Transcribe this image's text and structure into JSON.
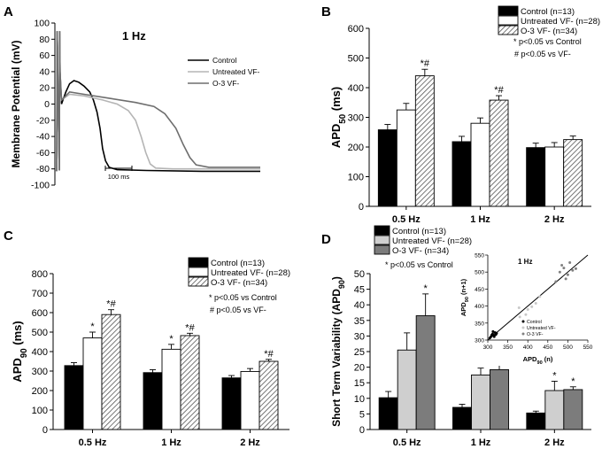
{
  "patterns": {
    "hatch_color": "#555555"
  },
  "panels": {
    "A": {
      "label": "A"
    },
    "B": {
      "label": "B"
    },
    "C": {
      "label": "C"
    },
    "D": {
      "label": "D"
    }
  },
  "chart_data": [
    {
      "id": "A",
      "type": "line",
      "title": "1 Hz",
      "ylabel": "Membrane Potential (mV)",
      "ylim": [
        -100,
        100
      ],
      "yticks": [
        -100,
        -80,
        -60,
        -40,
        -20,
        0,
        20,
        40,
        60,
        80,
        100
      ],
      "scale_bar": "100 ms",
      "xlim_ms": [
        0,
        700
      ],
      "series": [
        {
          "name": "Control",
          "color": "#000000",
          "points": [
            [
              0,
              -82
            ],
            [
              5,
              -82
            ],
            [
              6,
              90
            ],
            [
              7,
              70
            ],
            [
              8,
              30
            ],
            [
              12,
              -82
            ],
            [
              13,
              90
            ],
            [
              14,
              40
            ],
            [
              18,
              0
            ],
            [
              22,
              5
            ],
            [
              30,
              15
            ],
            [
              40,
              25
            ],
            [
              52,
              29
            ],
            [
              65,
              27
            ],
            [
              80,
              22
            ],
            [
              95,
              15
            ],
            [
              105,
              5
            ],
            [
              115,
              -10
            ],
            [
              123,
              -30
            ],
            [
              130,
              -55
            ],
            [
              138,
              -70
            ],
            [
              148,
              -78
            ],
            [
              170,
              -81
            ],
            [
              250,
              -82
            ],
            [
              400,
              -83
            ],
            [
              560,
              -83
            ]
          ]
        },
        {
          "name": "Untreated VF-",
          "color": "#b5b5b5",
          "points": [
            [
              0,
              -82
            ],
            [
              5,
              -82
            ],
            [
              6,
              90
            ],
            [
              7,
              70
            ],
            [
              8,
              30
            ],
            [
              12,
              -82
            ],
            [
              13,
              90
            ],
            [
              14,
              40
            ],
            [
              18,
              5
            ],
            [
              40,
              12
            ],
            [
              80,
              10
            ],
            [
              130,
              5
            ],
            [
              170,
              0
            ],
            [
              200,
              -8
            ],
            [
              220,
              -20
            ],
            [
              235,
              -40
            ],
            [
              248,
              -60
            ],
            [
              260,
              -74
            ],
            [
              275,
              -79
            ],
            [
              320,
              -80
            ],
            [
              560,
              -80
            ]
          ]
        },
        {
          "name": "O-3 VF-",
          "color": "#6e6e6e",
          "points": [
            [
              0,
              -82
            ],
            [
              5,
              -82
            ],
            [
              6,
              90
            ],
            [
              7,
              70
            ],
            [
              8,
              30
            ],
            [
              12,
              -82
            ],
            [
              13,
              90
            ],
            [
              14,
              40
            ],
            [
              18,
              5
            ],
            [
              40,
              15
            ],
            [
              80,
              12
            ],
            [
              150,
              7
            ],
            [
              220,
              2
            ],
            [
              270,
              -3
            ],
            [
              300,
              -12
            ],
            [
              330,
              -30
            ],
            [
              350,
              -50
            ],
            [
              368,
              -66
            ],
            [
              385,
              -75
            ],
            [
              420,
              -78
            ],
            [
              560,
              -78
            ]
          ]
        }
      ]
    },
    {
      "id": "B",
      "type": "bar",
      "ylabel": "APD50 (ms)",
      "ylim": [
        0,
        600
      ],
      "yticks": [
        0,
        100,
        200,
        300,
        400,
        500,
        600
      ],
      "categories": [
        "0.5 Hz",
        "1 Hz",
        "2 Hz"
      ],
      "series": [
        {
          "name": "Control (n=13)",
          "fill": "black",
          "values": [
            258,
            218,
            198
          ],
          "errors": [
            18,
            18,
            15
          ]
        },
        {
          "name": "Untreated VF- (n=28)",
          "fill": "white",
          "values": [
            325,
            280,
            200
          ],
          "errors": [
            22,
            18,
            15
          ]
        },
        {
          "name": "O-3 VF- (n=34)",
          "fill": "hatch",
          "values": [
            440,
            358,
            225
          ],
          "errors": [
            22,
            15,
            12
          ]
        }
      ],
      "annotations": [
        {
          "category": 0,
          "series": 2,
          "text": "*#"
        },
        {
          "category": 1,
          "series": 2,
          "text": "*#"
        }
      ],
      "notes": [
        "* p<0.05 vs Control",
        "# p<0.05 vs VF-"
      ]
    },
    {
      "id": "C",
      "type": "bar",
      "ylabel": "APD90 (ms)",
      "ylim": [
        0,
        800
      ],
      "yticks": [
        0,
        100,
        200,
        300,
        400,
        500,
        600,
        700,
        800
      ],
      "categories": [
        "0.5 Hz",
        "1 Hz",
        "2 Hz"
      ],
      "series": [
        {
          "name": "Control (n=13)",
          "fill": "black",
          "values": [
            328,
            292,
            265
          ],
          "errors": [
            15,
            15,
            12
          ]
        },
        {
          "name": "Untreated VF- (n=28)",
          "fill": "white",
          "values": [
            470,
            412,
            298
          ],
          "errors": [
            30,
            25,
            15
          ]
        },
        {
          "name": "O-3 VF- (n=34)",
          "fill": "hatch",
          "values": [
            590,
            482,
            350
          ],
          "errors": [
            25,
            12,
            10
          ]
        }
      ],
      "annotations": [
        {
          "category": 0,
          "series": 1,
          "text": "*"
        },
        {
          "category": 0,
          "series": 2,
          "text": "*#"
        },
        {
          "category": 1,
          "series": 1,
          "text": "*"
        },
        {
          "category": 1,
          "series": 2,
          "text": "*#"
        },
        {
          "category": 2,
          "series": 2,
          "text": "*#"
        }
      ],
      "notes": [
        "* p<0.05 vs Control",
        "# p<0.05 vs VF-"
      ]
    },
    {
      "id": "D",
      "type": "bar",
      "ylabel": "Short Term Variability (APD90)",
      "ylim": [
        0,
        50
      ],
      "yticks": [
        0,
        5,
        10,
        15,
        20,
        25,
        30,
        35,
        40,
        45,
        50
      ],
      "categories": [
        "0.5 Hz",
        "1 Hz",
        "2 Hz"
      ],
      "series": [
        {
          "name": "Control (n=13)",
          "fill": "black",
          "values": [
            10.2,
            7.1,
            5.3
          ],
          "errors": [
            2.0,
            1.0,
            0.6
          ]
        },
        {
          "name": "Untreated VF- (n=28)",
          "fill": "#cfcfcf",
          "values": [
            25.5,
            17.5,
            12.5
          ],
          "errors": [
            5.5,
            2.2,
            3.0
          ]
        },
        {
          "name": "O-3 VF- (n=34)",
          "fill": "#7c7c7c",
          "values": [
            36.5,
            19.2,
            12.8
          ],
          "errors": [
            7.0,
            1.6,
            0.9
          ]
        }
      ],
      "annotations": [
        {
          "category": 0,
          "series": 2,
          "text": "*"
        },
        {
          "category": 1,
          "series": 1,
          "text": "*"
        },
        {
          "category": 1,
          "series": 2,
          "text": "*"
        },
        {
          "category": 2,
          "series": 1,
          "text": "*"
        },
        {
          "category": 2,
          "series": 2,
          "text": "*"
        }
      ],
      "notes": [
        "* p<0.05 vs Control"
      ]
    },
    {
      "id": "D-inset",
      "type": "scatter",
      "title": "1 Hz",
      "xlabel": "APD90 (n)",
      "ylabel": "APD90 (n+1)",
      "xlim": [
        300,
        550
      ],
      "ylim": [
        300,
        550
      ],
      "xticks": [
        300,
        350,
        400,
        450,
        500,
        550
      ],
      "yticks": [
        300,
        350,
        400,
        450,
        500,
        550
      ],
      "identity_line": true,
      "series": [
        {
          "name": "Control",
          "color": "#000000",
          "points": [
            [
              308,
              310
            ],
            [
              312,
              318
            ],
            [
              315,
              313
            ],
            [
              318,
              322
            ],
            [
              305,
              306
            ],
            [
              320,
              316
            ],
            [
              313,
              325
            ],
            [
              310,
              315
            ],
            [
              322,
              320
            ],
            [
              316,
              310
            ]
          ]
        },
        {
          "name": "Untreated VF-",
          "color": "#c8c8c8",
          "points": [
            [
              380,
              368
            ],
            [
              400,
              390
            ],
            [
              378,
              395
            ],
            [
              420,
              408
            ],
            [
              395,
              375
            ],
            [
              430,
              428
            ],
            [
              410,
              398
            ]
          ]
        },
        {
          "name": "O-3 VF-",
          "color": "#808080",
          "points": [
            [
              480,
              500
            ],
            [
              500,
              492
            ],
            [
              490,
              512
            ],
            [
              512,
              505
            ],
            [
              470,
              472
            ],
            [
              505,
              528
            ],
            [
              495,
              480
            ],
            [
              520,
              510
            ],
            [
              485,
              520
            ]
          ]
        }
      ]
    }
  ]
}
